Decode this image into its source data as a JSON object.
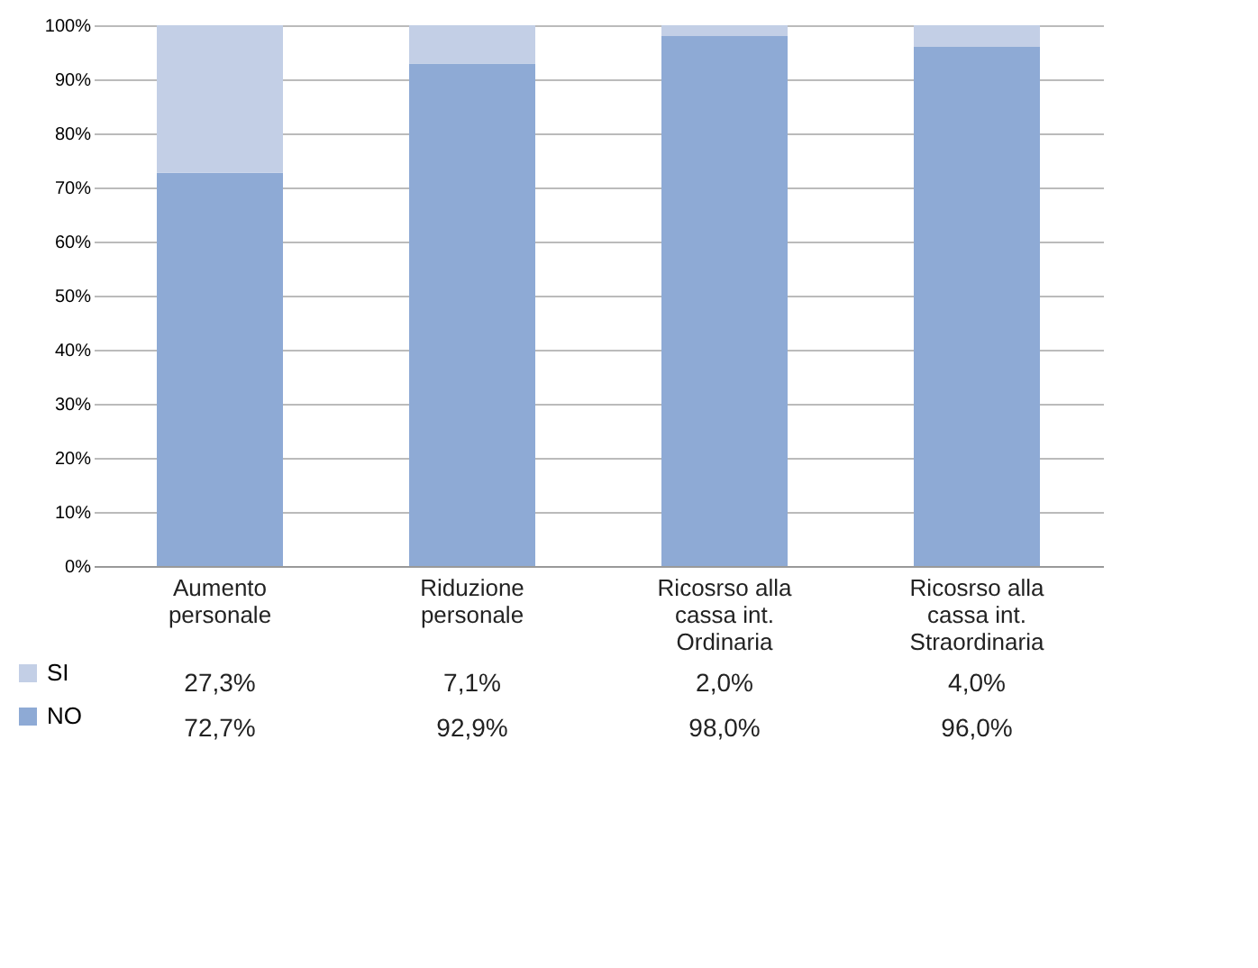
{
  "chart_data": {
    "type": "bar",
    "stacked": true,
    "categories": [
      "Aumento personale",
      "Riduzione personale",
      "Ricosrso alla cassa int. Ordinaria",
      "Ricosrso alla cassa int. Straordinaria"
    ],
    "series": [
      {
        "name": "NO",
        "color": "#8eaad5",
        "values": [
          72.7,
          92.9,
          98.0,
          96.0
        ],
        "value_labels": [
          "72,7%",
          "92,9%",
          "98,0%",
          "96,0%"
        ]
      },
      {
        "name": "SI",
        "color": "#c3cfe6",
        "values": [
          27.3,
          7.1,
          2.0,
          4.0
        ],
        "value_labels": [
          "27,3%",
          "7,1%",
          "2,0%",
          "4,0%"
        ]
      }
    ],
    "ylim": [
      0,
      100
    ],
    "yticks": [
      {
        "value": 0,
        "label": "0%"
      },
      {
        "value": 10,
        "label": "10%"
      },
      {
        "value": 20,
        "label": "20%"
      },
      {
        "value": 30,
        "label": "30%"
      },
      {
        "value": 40,
        "label": "40%"
      },
      {
        "value": 50,
        "label": "50%"
      },
      {
        "value": 60,
        "label": "60%"
      },
      {
        "value": 70,
        "label": "70%"
      },
      {
        "value": 80,
        "label": "80%"
      },
      {
        "value": 90,
        "label": "90%"
      },
      {
        "value": 100,
        "label": "100%"
      }
    ],
    "grid": "y",
    "legend": "bottom left"
  }
}
